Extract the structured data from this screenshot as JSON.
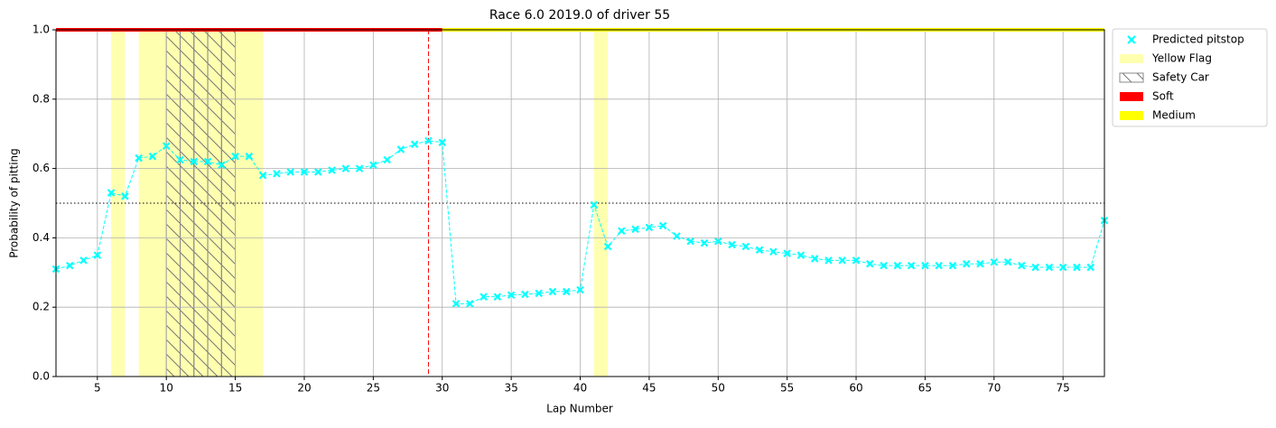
{
  "chart_data": {
    "type": "line",
    "title": "Race 6.0 2019.0 of driver 55",
    "x_label": "Lap Number",
    "y_label": "Probability of pitting",
    "x": [
      2,
      3,
      4,
      5,
      6,
      7,
      8,
      9,
      10,
      11,
      12,
      13,
      14,
      15,
      16,
      17,
      18,
      19,
      20,
      21,
      22,
      23,
      24,
      25,
      26,
      27,
      28,
      29,
      30,
      31,
      32,
      33,
      34,
      35,
      36,
      37,
      38,
      39,
      40,
      41,
      42,
      43,
      44,
      45,
      46,
      47,
      48,
      49,
      50,
      51,
      52,
      53,
      54,
      55,
      56,
      57,
      58,
      59,
      60,
      61,
      62,
      63,
      64,
      65,
      66,
      67,
      68,
      69,
      70,
      71,
      72,
      73,
      74,
      75,
      76,
      77,
      78
    ],
    "series": [
      {
        "name": "Predicted pitstop",
        "color": "#00ffff",
        "values": [
          0.31,
          0.32,
          0.335,
          0.35,
          0.53,
          0.52,
          0.63,
          0.635,
          0.665,
          0.625,
          0.62,
          0.62,
          0.61,
          0.635,
          0.635,
          0.58,
          0.585,
          0.59,
          0.59,
          0.59,
          0.595,
          0.6,
          0.6,
          0.61,
          0.625,
          0.655,
          0.67,
          0.68,
          0.675,
          0.21,
          0.21,
          0.23,
          0.23,
          0.235,
          0.237,
          0.24,
          0.245,
          0.245,
          0.25,
          0.495,
          0.375,
          0.42,
          0.425,
          0.43,
          0.435,
          0.405,
          0.39,
          0.385,
          0.39,
          0.38,
          0.375,
          0.365,
          0.36,
          0.355,
          0.35,
          0.34,
          0.335,
          0.335,
          0.335,
          0.325,
          0.32,
          0.32,
          0.32,
          0.32,
          0.32,
          0.32,
          0.325,
          0.325,
          0.33,
          0.33,
          0.32,
          0.315,
          0.315,
          0.315,
          0.315,
          0.315,
          0.45
        ]
      }
    ],
    "xlim": [
      2,
      78
    ],
    "ylim": [
      0,
      1
    ],
    "xticks": [
      5,
      10,
      15,
      20,
      25,
      30,
      35,
      40,
      45,
      50,
      55,
      60,
      65,
      70,
      75
    ],
    "yticks": [
      {
        "value": 0,
        "label": "0.0"
      },
      0.2,
      0.4,
      0.6,
      0.8,
      {
        "value": 1,
        "label": "1.0"
      }
    ],
    "grid": true,
    "legend": "outside-right",
    "threshold": 0.5,
    "pit_lap": 29,
    "pit_line_color": "#ff0000",
    "yellow_flag": {
      "name": "Yellow Flag",
      "color": "#ffffb0",
      "spans": [
        [
          6,
          7
        ],
        [
          8,
          17
        ],
        [
          41,
          42
        ]
      ]
    },
    "safety_car": {
      "name": "Safety Car",
      "color": "#888888",
      "spans": [
        [
          10,
          11
        ],
        [
          11,
          12
        ],
        [
          12,
          13
        ],
        [
          13,
          14
        ],
        [
          14,
          15
        ]
      ]
    },
    "tyres": [
      {
        "name": "Soft",
        "color": "#ff0000",
        "start": 2,
        "end": 30
      },
      {
        "name": "Medium",
        "color": "#ffff00",
        "start": 30,
        "end": 78
      }
    ]
  }
}
